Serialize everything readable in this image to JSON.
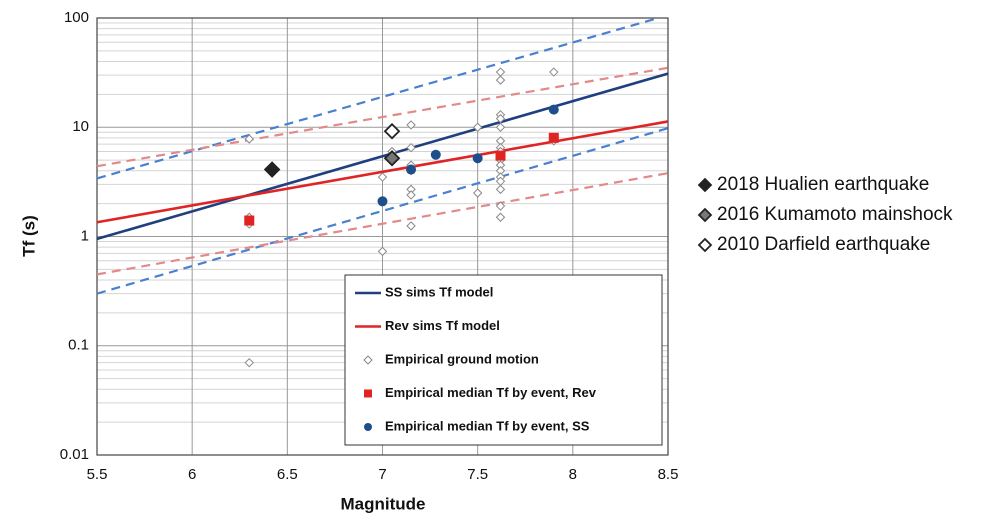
{
  "chart_data": {
    "type": "scatter",
    "xlabel": "Magnitude",
    "ylabel": "Tf (s)",
    "xlim": [
      5.5,
      8.5
    ],
    "ylim": [
      0.01,
      100
    ],
    "xticks": [
      5.5,
      6,
      6.5,
      7,
      7.5,
      8,
      8.5
    ],
    "yticks": [
      0.01,
      0.1,
      1,
      10,
      100
    ],
    "log_y": true,
    "grid": true,
    "legend": "lower right",
    "series": [
      {
        "name": "SS sims Tf model",
        "color": "#1f3f80",
        "style": "line",
        "x": [
          5.5,
          8.5
        ],
        "values": [
          0.95,
          31
        ]
      },
      {
        "name": "Rev sims Tf model",
        "color": "#e02424",
        "style": "line",
        "x": [
          5.5,
          8.5
        ],
        "values": [
          1.35,
          11.3
        ]
      },
      {
        "name": "Empirical ground motion",
        "color": "#888888",
        "style": "marker",
        "marker": "diamond",
        "size": 4,
        "x": [
          6.3,
          6.3,
          6.3,
          6.3,
          7.0,
          7.0,
          7.05,
          7.05,
          7.15,
          7.15,
          7.15,
          7.15,
          7.15,
          7.15,
          7.15,
          7.5,
          7.5,
          7.62,
          7.62,
          7.62,
          7.62,
          7.62,
          7.62,
          7.62,
          7.62,
          7.62,
          7.62,
          7.62,
          7.62,
          7.62,
          7.62,
          7.62,
          7.62,
          7.62,
          7.9,
          7.9
        ],
        "values": [
          7.8,
          1.3,
          1.5,
          0.07,
          3.5,
          0.73,
          5.0,
          6.0,
          10.5,
          6.5,
          4.5,
          2.7,
          2.4,
          1.25,
          4.0,
          10,
          2.5,
          32,
          27,
          13,
          12,
          10,
          7.5,
          6.5,
          6,
          5.5,
          5,
          4.5,
          4,
          3.5,
          3.2,
          2.7,
          1.9,
          1.5,
          32,
          7.5
        ]
      },
      {
        "name": "Empirical median Tf by event, Rev",
        "color": "#e02424",
        "style": "marker",
        "marker": "square",
        "size": 5,
        "x": [
          6.3,
          7.62,
          7.9
        ],
        "values": [
          1.4,
          5.5,
          8
        ]
      },
      {
        "name": "Empirical median Tf by event, SS",
        "color": "#1f4e8c",
        "style": "marker",
        "marker": "circle",
        "size": 5,
        "x": [
          7.0,
          7.15,
          7.28,
          7.5,
          7.9
        ],
        "values": [
          2.1,
          4.1,
          5.6,
          5.2,
          14.5
        ]
      },
      {
        "color": "#4a80d0",
        "style": "line",
        "dash": true,
        "x": [
          5.5,
          8.45
        ],
        "values": [
          3.4,
          100
        ]
      },
      {
        "color": "#4a80d0",
        "style": "line",
        "dash": true,
        "x": [
          5.5,
          8.5
        ],
        "values": [
          0.3,
          9.8
        ]
      },
      {
        "color": "#e28a8a",
        "style": "line",
        "dash": true,
        "x": [
          5.5,
          8.5
        ],
        "values": [
          4.4,
          35
        ]
      },
      {
        "color": "#e28a8a",
        "style": "line",
        "dash": true,
        "x": [
          5.5,
          8.5
        ],
        "values": [
          0.45,
          3.8
        ]
      },
      {
        "name": "2018 Hualien earthquake",
        "color": "#222222",
        "style": "marker",
        "marker": "diamond",
        "size": 7,
        "legend": "outside",
        "x": [
          6.42
        ],
        "values": [
          4.1
        ]
      },
      {
        "name": "2016 Kumamoto mainshock",
        "color": "#777777",
        "style": "marker",
        "marker": "diamond",
        "size": 7,
        "legend": "outside",
        "x": [
          7.05
        ],
        "values": [
          5.2
        ]
      },
      {
        "name": "2010 Darfield earthquake",
        "color": "#ffffff",
        "style": "marker",
        "marker": "diamond",
        "size": 7,
        "legend": "outside",
        "x": [
          7.05
        ],
        "values": [
          9.2
        ]
      }
    ]
  }
}
